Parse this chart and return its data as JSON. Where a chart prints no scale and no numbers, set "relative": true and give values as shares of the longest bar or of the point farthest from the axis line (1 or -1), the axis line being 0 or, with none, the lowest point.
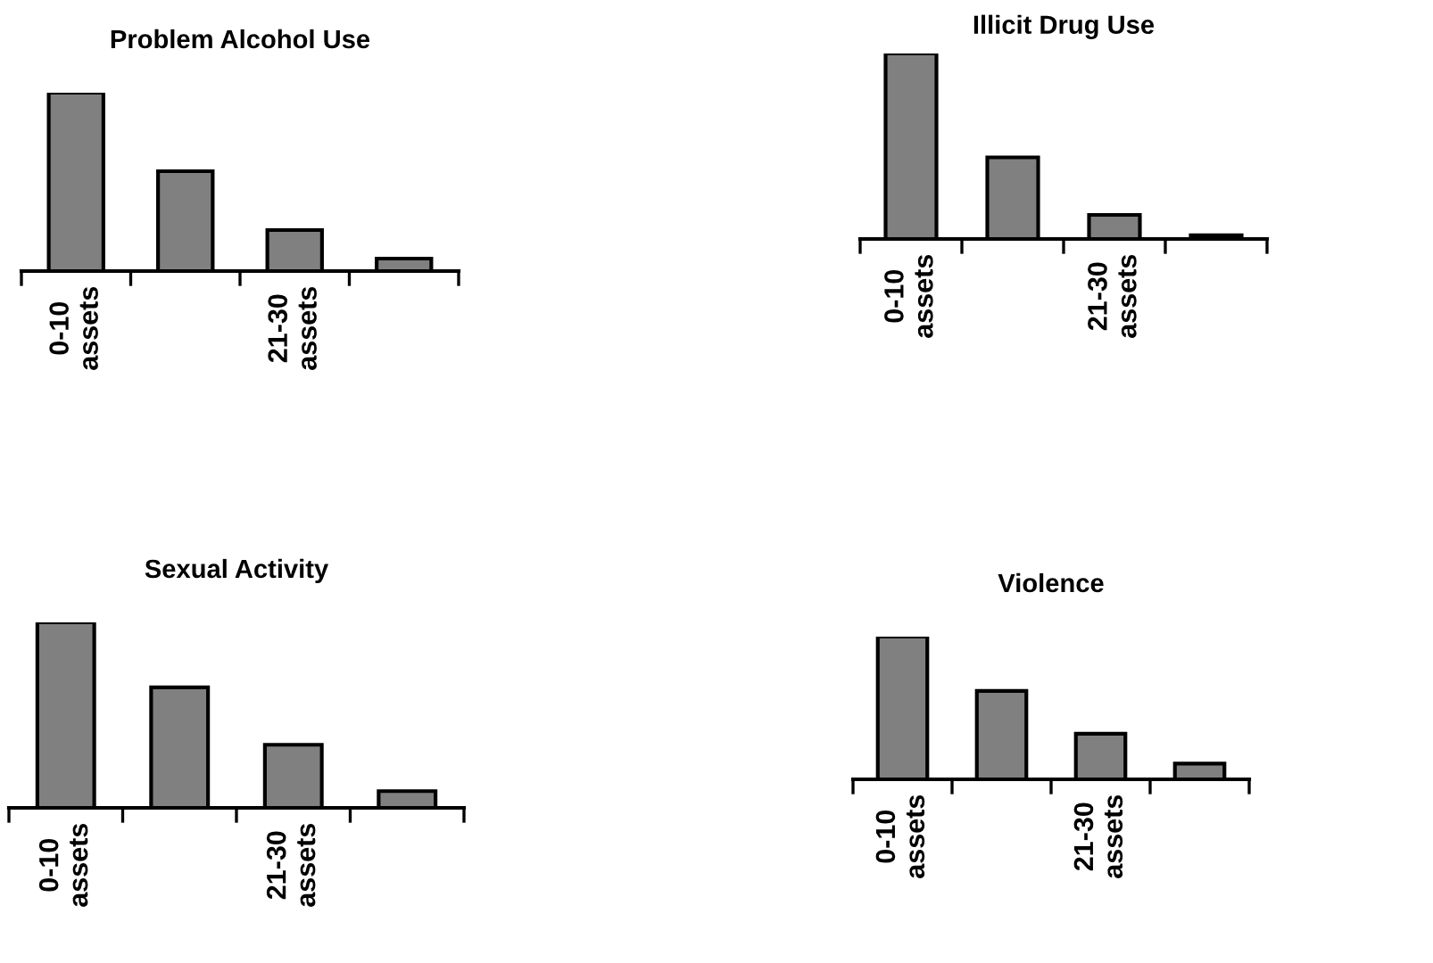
{
  "chart_data": [
    {
      "type": "bar",
      "title": "Problem Alcohol Use",
      "relative": true,
      "categories": [
        "0-10 assets",
        null,
        "21-30 assets",
        null
      ],
      "values": [
        1,
        0.56,
        0.23,
        0.07
      ],
      "color": "#808080",
      "grid": false,
      "legend": false
    },
    {
      "type": "bar",
      "title": "Illicit Drug Use",
      "relative": true,
      "categories": [
        "0-10 assets",
        null,
        "21-30 assets",
        null
      ],
      "values": [
        1,
        0.44,
        0.13,
        0.02
      ],
      "color": "#808080",
      "grid": false,
      "legend": false
    },
    {
      "type": "bar",
      "title": "Sexual Activity",
      "relative": true,
      "categories": [
        "0-10 assets",
        null,
        "21-30 assets",
        null
      ],
      "values": [
        1,
        0.65,
        0.34,
        0.09
      ],
      "color": "#808080",
      "grid": false,
      "legend": false
    },
    {
      "type": "bar",
      "title": "Violence",
      "relative": true,
      "categories": [
        "0-10 assets",
        null,
        "21-30 assets",
        null
      ],
      "values": [
        1,
        0.62,
        0.32,
        0.11
      ],
      "color": "#808080",
      "grid": false,
      "legend": false
    }
  ]
}
